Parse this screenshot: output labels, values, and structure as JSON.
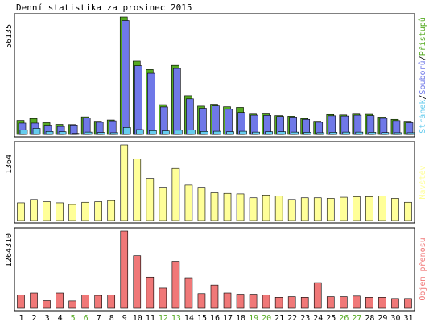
{
  "title": "Denní statistika za prosinec 2015",
  "chart_data": [
    {
      "type": "bar",
      "panel": "hits",
      "categories": [
        "1",
        "2",
        "3",
        "4",
        "5",
        "6",
        "7",
        "8",
        "9",
        "10",
        "11",
        "12",
        "13",
        "14",
        "15",
        "16",
        "17",
        "18",
        "19",
        "20",
        "21",
        "22",
        "23",
        "24",
        "25",
        "26",
        "27",
        "28",
        "29",
        "30",
        "31"
      ],
      "weekend_days": [
        "5",
        "6",
        "12",
        "13",
        "19",
        "20",
        "26",
        "27"
      ],
      "max_label": "56135",
      "legend_parts": [
        {
          "text": "Stránek",
          "color": "#66ccee"
        },
        {
          "text": "/",
          "color": "#000000"
        },
        {
          "text": "Souborů",
          "color": "#6f78e8"
        },
        {
          "text": "/",
          "color": "#000000"
        },
        {
          "text": "Přístupů",
          "color": "#55aa22"
        }
      ],
      "ylim": [
        0,
        56135
      ],
      "series": [
        {
          "name": "Přístupů",
          "color": "#55aa22",
          "values": [
            6700,
            7600,
            5600,
            4800,
            4700,
            8400,
            6300,
            6900,
            56135,
            35000,
            31000,
            14200,
            33000,
            18500,
            13500,
            14400,
            13200,
            12900,
            9700,
            9800,
            9000,
            8700,
            7600,
            6300,
            9500,
            9300,
            9700,
            9600,
            8300,
            7200,
            6300
          ]
        },
        {
          "name": "Souborů",
          "color": "#6f78e8",
          "values": [
            5400,
            5400,
            4400,
            3800,
            4500,
            7800,
            5800,
            6500,
            54400,
            32800,
            29200,
            13100,
            31500,
            17000,
            12500,
            13600,
            12000,
            10500,
            9200,
            9100,
            8600,
            8300,
            7200,
            5800,
            8900,
            8800,
            9200,
            9000,
            7700,
            6600,
            5600
          ]
        },
        {
          "name": "Stránek",
          "color": "#66ccee",
          "values": [
            2200,
            2900,
            1400,
            1300,
            500,
            1100,
            900,
            800,
            3300,
            2300,
            1800,
            1700,
            2000,
            2100,
            1400,
            1500,
            1300,
            1500,
            1100,
            1300,
            1300,
            1100,
            1000,
            800,
            1000,
            1100,
            1100,
            1000,
            900,
            800,
            800
          ]
        }
      ]
    },
    {
      "type": "bar",
      "panel": "visits",
      "max_label": "1364",
      "legend": "Návštěv",
      "color": "#ffff99",
      "ylim": [
        0,
        1364
      ],
      "series": [
        {
          "name": "Návštěv",
          "color": "#ffff99",
          "values": [
            320,
            380,
            340,
            320,
            290,
            330,
            340,
            360,
            1364,
            1110,
            760,
            600,
            940,
            640,
            600,
            500,
            490,
            480,
            410,
            460,
            440,
            380,
            410,
            410,
            400,
            420,
            430,
            430,
            440,
            400,
            330
          ]
        }
      ]
    },
    {
      "type": "bar",
      "panel": "volume",
      "max_label": "1264310",
      "legend": "Objem přenosu",
      "color": "#f07878",
      "ylim": [
        0,
        1264310
      ],
      "series": [
        {
          "name": "Objem přenosu",
          "color": "#f07878",
          "values": [
            220000,
            250000,
            125000,
            250000,
            120000,
            220000,
            210000,
            220000,
            1264310,
            860000,
            510000,
            330000,
            770000,
            500000,
            240000,
            380000,
            250000,
            230000,
            230000,
            220000,
            180000,
            190000,
            180000,
            420000,
            190000,
            190000,
            200000,
            180000,
            180000,
            160000,
            160000
          ]
        }
      ]
    }
  ]
}
